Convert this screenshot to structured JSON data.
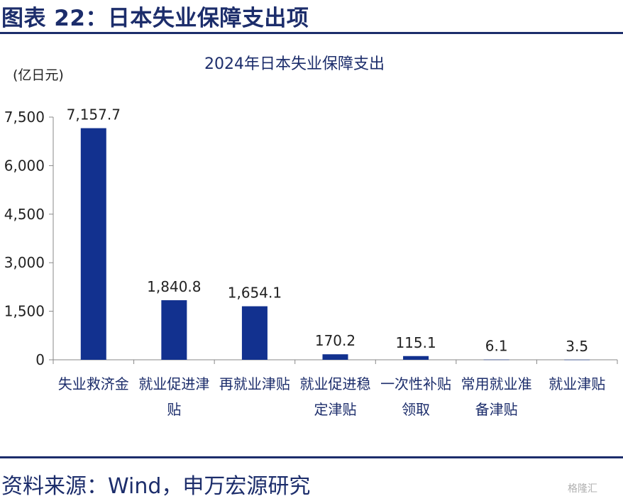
{
  "figure_title": "图表 22：日本失业保障支出项",
  "source": "资料来源：Wind，申万宏源研究",
  "watermark": "格隆汇",
  "colors": {
    "bar": "#12318f",
    "accent": "#1c2d6b"
  },
  "chart_data": {
    "type": "bar",
    "title": "2024年日本失业保障支出",
    "ylabel": "(亿日元)",
    "ylim": [
      0,
      7500
    ],
    "yticks": [
      0,
      1500,
      3000,
      4500,
      6000,
      7500
    ],
    "ytick_labels": [
      "0",
      "1,500",
      "3,000",
      "4,500",
      "6,000",
      "7,500"
    ],
    "categories": [
      [
        "失业救济金"
      ],
      [
        "就业促进津",
        "贴"
      ],
      [
        "再就业津贴"
      ],
      [
        "就业促进稳",
        "定津贴"
      ],
      [
        "一次性补贴",
        "领取"
      ],
      [
        "常用就业准",
        "备津贴"
      ],
      [
        "就业津贴"
      ]
    ],
    "values": [
      7157.7,
      1840.8,
      1654.1,
      170.2,
      115.1,
      6.1,
      3.5
    ],
    "data_labels": [
      "7,157.7",
      "1,840.8",
      "1,654.1",
      "170.2",
      "115.1",
      "6.1",
      "3.5"
    ],
    "grid": false,
    "legend": "none"
  }
}
